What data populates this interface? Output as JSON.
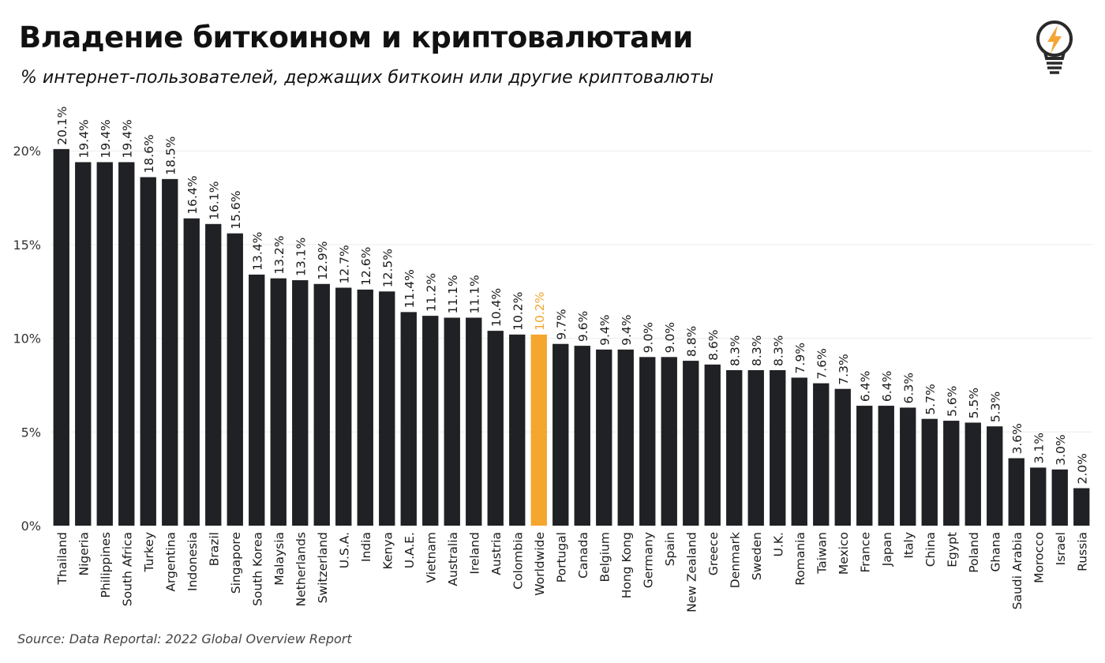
{
  "header": {
    "title": "Владение биткоином и криптовалютами",
    "subtitle": "% интернет-пользователей, держащих биткоин или другие криптовалюты"
  },
  "footer": {
    "source": "Source: Data Reportal: 2022 Global Overview Report"
  },
  "logo": {
    "icon": "lightbulb-lightning-icon",
    "accent_color": "#f4a533"
  },
  "colors": {
    "bar": "#1f2124",
    "highlight": "#f4a62f",
    "grid": "#ececec",
    "text": "#1a1a1a"
  },
  "chart_data": {
    "type": "bar",
    "title": "Владение биткоином и криптовалютами",
    "subtitle": "% интернет-пользователей, держащих биткоин или другие криптовалюты",
    "xlabel": "",
    "ylabel": "",
    "ylim": [
      0,
      23
    ],
    "yticks": [
      0,
      5,
      10,
      15,
      20
    ],
    "ytick_labels": [
      "0%",
      "5%",
      "10%",
      "15%",
      "20%"
    ],
    "grid": true,
    "highlight_category": "Worldwide",
    "categories": [
      "Thailand",
      "Nigeria",
      "Philippines",
      "South Africa",
      "Turkey",
      "Argentina",
      "Indonesia",
      "Brazil",
      "Singapore",
      "South Korea",
      "Malaysia",
      "Netherlands",
      "Switzerland",
      "U.S.A.",
      "India",
      "Kenya",
      "U.A.E.",
      "Vietnam",
      "Australia",
      "Ireland",
      "Austria",
      "Colombia",
      "Worldwide",
      "Portugal",
      "Canada",
      "Belgium",
      "Hong Kong",
      "Germany",
      "Spain",
      "New Zealand",
      "Greece",
      "Denmark",
      "Sweden",
      "U.K.",
      "Romania",
      "Taiwan",
      "Mexico",
      "France",
      "Japan",
      "Italy",
      "China",
      "Egypt",
      "Poland",
      "Ghana",
      "Saudi Arabia",
      "Morocco",
      "Israel",
      "Russia"
    ],
    "values": [
      20.1,
      19.4,
      19.4,
      19.4,
      18.6,
      18.5,
      16.4,
      16.1,
      15.6,
      13.4,
      13.2,
      13.1,
      12.9,
      12.7,
      12.6,
      12.5,
      11.4,
      11.2,
      11.1,
      11.1,
      10.4,
      10.2,
      10.2,
      9.7,
      9.6,
      9.4,
      9.4,
      9.0,
      9.0,
      8.8,
      8.6,
      8.3,
      8.3,
      8.3,
      7.9,
      7.6,
      7.3,
      6.4,
      6.4,
      6.3,
      5.7,
      5.6,
      5.5,
      5.3,
      3.6,
      3.1,
      3.0,
      2.0
    ],
    "value_labels": [
      "20.1%",
      "19.4%",
      "19.4%",
      "19.4%",
      "18.6%",
      "18.5%",
      "16.4%",
      "16.1%",
      "15.6%",
      "13.4%",
      "13.2%",
      "13.1%",
      "12.9%",
      "12.7%",
      "12.6%",
      "12.5%",
      "11.4%",
      "11.2%",
      "11.1%",
      "11.1%",
      "10.4%",
      "10.2%",
      "10.2%",
      "9.7%",
      "9.6%",
      "9.4%",
      "9.4%",
      "9.0%",
      "9.0%",
      "8.8%",
      "8.6%",
      "8.3%",
      "8.3%",
      "8.3%",
      "7.9%",
      "7.6%",
      "7.3%",
      "6.4%",
      "6.4%",
      "6.3%",
      "5.7%",
      "5.6%",
      "5.5%",
      "5.3%",
      "3.6%",
      "3.1%",
      "3.0%",
      "2.0%"
    ]
  }
}
